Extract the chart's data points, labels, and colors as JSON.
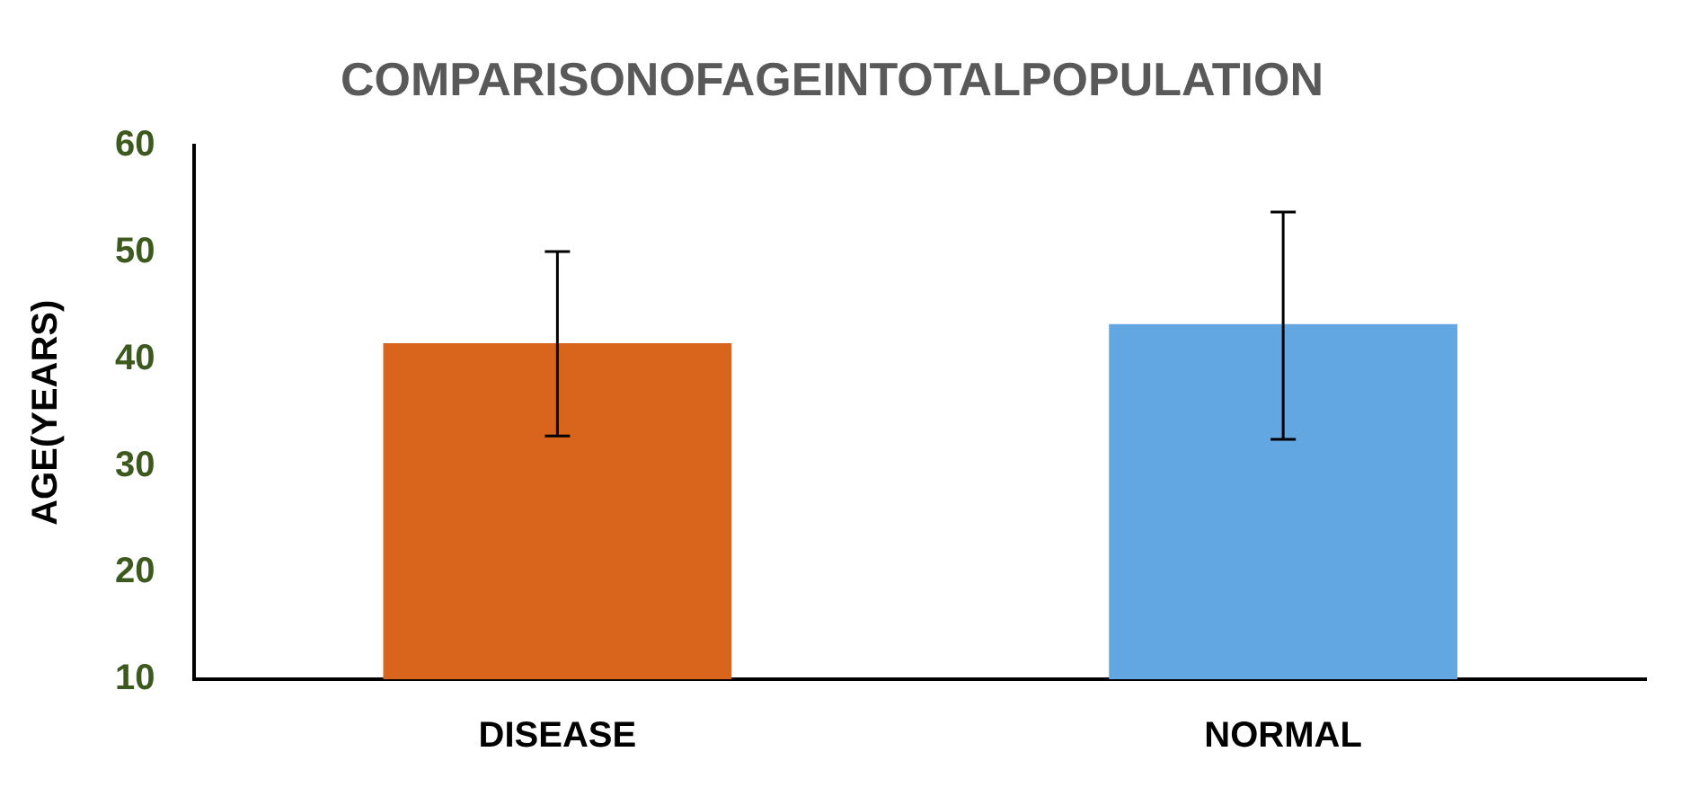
{
  "chart_data": {
    "type": "bar",
    "title": "COMPARISONOFAGEINTOTALPOPULATION",
    "ylabel": "AGE(YEARS)",
    "categories": [
      "DISEASE",
      "NORMAL"
    ],
    "values": [
      41.5,
      43.3
    ],
    "colors": [
      "#d9641c",
      "#62a6e2"
    ],
    "errors": [
      [
        32.8,
        50.1
      ],
      [
        32.5,
        53.8
      ]
    ],
    "ylim": [
      10,
      60
    ],
    "yticks": [
      10,
      20,
      30,
      40,
      50,
      60
    ],
    "grid": false,
    "legend": false
  }
}
